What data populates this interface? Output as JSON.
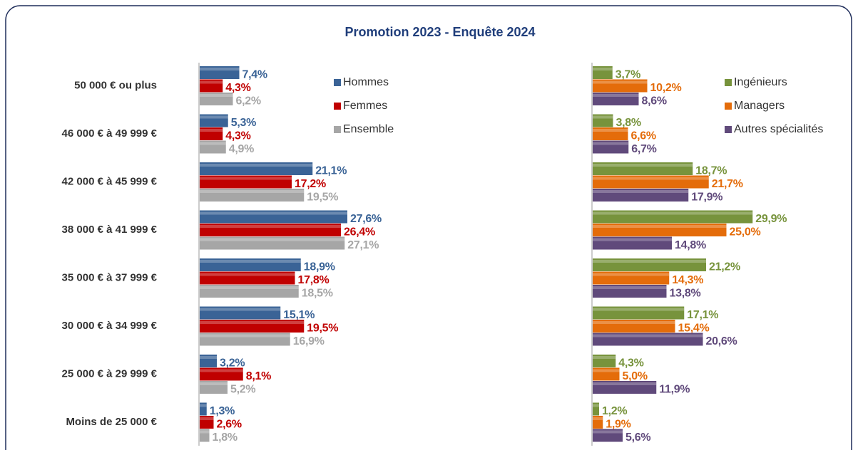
{
  "title": "Promotion 2023 - Enquête 2024",
  "chart_data": [
    {
      "type": "hbar",
      "categories": [
        "50 000 € ou plus",
        "46 000 € à 49 999 €",
        "42 000 € à 45 999 €",
        "38 000 € à 41 999 €",
        "35 000 € à 37 999 €",
        "30 000 € à 34 999 €",
        "25 000 € à 29 999 €",
        "Moins de 25 000 €"
      ],
      "series": [
        {
          "name": "Hommes",
          "color": "#3a6396",
          "values": [
            7.4,
            5.3,
            21.1,
            27.6,
            18.9,
            15.1,
            3.2,
            1.3
          ],
          "value_labels": [
            "7,4%",
            "5,3%",
            "21,1%",
            "27,6%",
            "18,9%",
            "15,1%",
            "3,2%",
            "1,3%"
          ]
        },
        {
          "name": "Femmes",
          "color": "#c00000",
          "values": [
            4.3,
            4.3,
            17.2,
            26.4,
            17.8,
            19.5,
            8.1,
            2.6
          ],
          "value_labels": [
            "4,3%",
            "4,3%",
            "17,2%",
            "26,4%",
            "17,8%",
            "19,5%",
            "8,1%",
            "2,6%"
          ]
        },
        {
          "name": "Ensemble",
          "color": "#a6a6a6",
          "values": [
            6.2,
            4.9,
            19.5,
            27.1,
            18.5,
            16.9,
            5.2,
            1.8
          ],
          "value_labels": [
            "6,2%",
            "4,9%",
            "19,5%",
            "27,1%",
            "18,5%",
            "16,9%",
            "5,2%",
            "1,8%"
          ]
        }
      ]
    },
    {
      "type": "hbar",
      "series": [
        {
          "name": "Ingénieurs",
          "color": "#77933c",
          "values": [
            3.7,
            3.8,
            18.7,
            29.9,
            21.2,
            17.1,
            4.3,
            1.2
          ],
          "value_labels": [
            "3,7%",
            "3,8%",
            "18,7%",
            "29,9%",
            "21,2%",
            "17,1%",
            "4,3%",
            "1,2%"
          ]
        },
        {
          "name": "Managers",
          "color": "#e46c0a",
          "values": [
            10.2,
            6.6,
            21.7,
            25,
            14.3,
            15.4,
            5,
            1.9
          ],
          "value_labels": [
            "10,2%",
            "6,6%",
            "21,7%",
            "25,0%",
            "14,3%",
            "15,4%",
            "5,0%",
            "1,9%"
          ]
        },
        {
          "name": "Autres spécialités",
          "color": "#604a7b",
          "values": [
            8.6,
            6.7,
            17.9,
            14.8,
            13.8,
            20.6,
            11.9,
            5.6
          ],
          "value_labels": [
            "8,6%",
            "6,7%",
            "17,9%",
            "14,8%",
            "13,8%",
            "20,6%",
            "11,9%",
            "5,6%"
          ]
        }
      ]
    }
  ]
}
